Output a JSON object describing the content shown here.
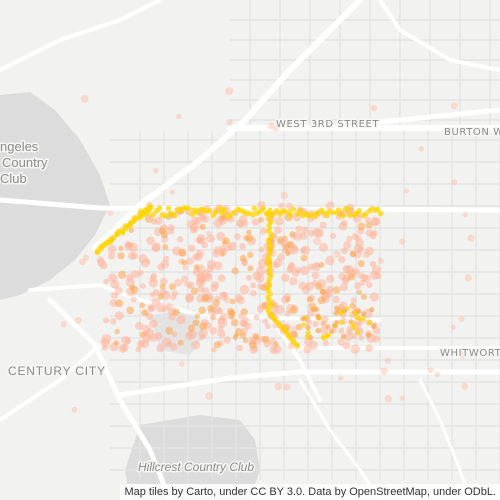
{
  "map": {
    "labels": {
      "la_country_club_1": "ngeles",
      "la_country_club_2": "Country",
      "la_country_club_3": "Club",
      "west_3rd_street": "WEST 3RD STREET",
      "burton_way": "BURTON W",
      "whitworth": "WHITWORT",
      "century_city": "CENTURY CITY",
      "hillcrest": "Hillcrest Country Club"
    },
    "attribution": "Map tiles by Carto, under CC BY 3.0. Data by OpenStreetMap, under ODbL.",
    "colors": {
      "land": "#f2f2f0",
      "park": "#dcdcdc",
      "major_road": "#ffffff",
      "minor_road": "#e6e6e6",
      "hotspot_low": "#ffb49a",
      "hotspot_mid": "#ffa64d",
      "hotspot_high": "#ffd400"
    }
  }
}
